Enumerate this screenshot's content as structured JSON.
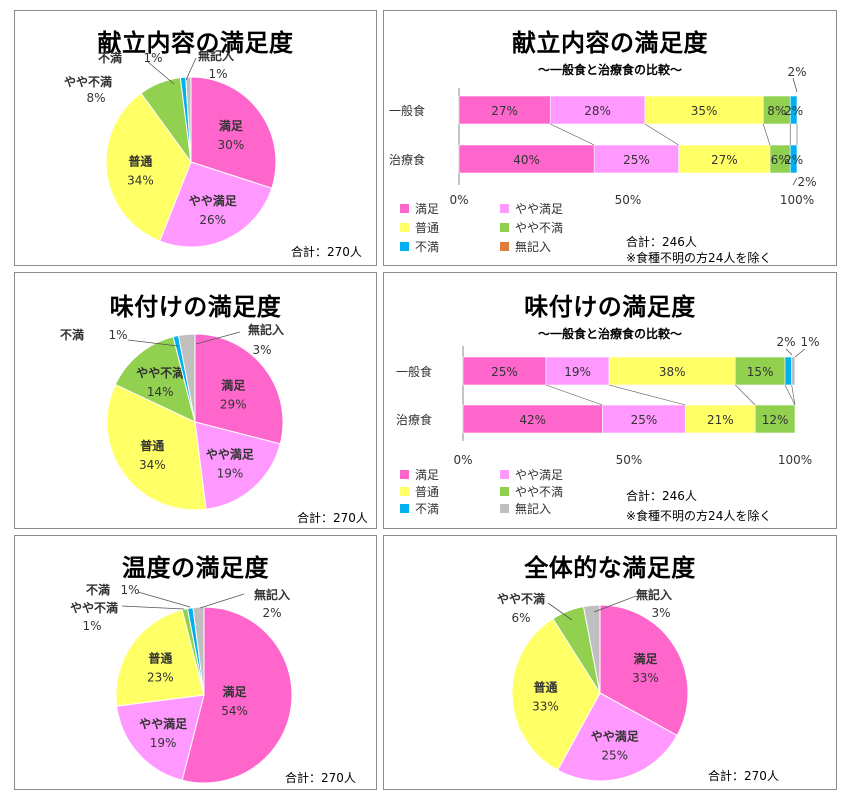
{
  "colors": {
    "satisfied": "#FF66CC",
    "somewhat_satisfied": "#FF99FF",
    "neutral": "#FFFF66",
    "somewhat_dissatisfied": "#92D050",
    "dissatisfied": "#00B0F0",
    "no_answer_orange": "#E07C3C",
    "no_answer_gray": "#BFBFBF"
  },
  "chart_data": [
    {
      "type": "pie",
      "title": "献立内容の満足度",
      "total": "合計：270人",
      "slices": [
        {
          "label": "満足",
          "value": 30,
          "pct": "30%"
        },
        {
          "label": "やや満足",
          "value": 26,
          "pct": "26%"
        },
        {
          "label": "普通",
          "value": 34,
          "pct": "34%"
        },
        {
          "label": "やや不満",
          "value": 8,
          "pct": "8%"
        },
        {
          "label": "不満",
          "value": 1,
          "pct": "1%"
        },
        {
          "label": "無記入",
          "value": 1,
          "pct": "1%"
        }
      ]
    },
    {
      "type": "bar",
      "orientation": "horizontal-stacked-100",
      "title": "献立内容の満足度",
      "subtitle": "～一般食と治療食の比較～",
      "categories": [
        "一般食",
        "治療食"
      ],
      "xticks": [
        "0%",
        "50%",
        "100%"
      ],
      "series": [
        {
          "name": "満足",
          "values": [
            27,
            40
          ],
          "labels": [
            "27%",
            "40%"
          ]
        },
        {
          "name": "やや満足",
          "values": [
            28,
            25
          ],
          "labels": [
            "28%",
            "25%"
          ]
        },
        {
          "name": "普通",
          "values": [
            35,
            27
          ],
          "labels": [
            "35%",
            "27%"
          ]
        },
        {
          "name": "やや不満",
          "values": [
            8,
            6
          ],
          "labels": [
            "8%",
            "6%"
          ]
        },
        {
          "name": "不満",
          "values": [
            2,
            2
          ],
          "labels": [
            "2%",
            "2%"
          ]
        },
        {
          "name": "無記入",
          "values": [
            0,
            0
          ],
          "labels": [
            "",
            ""
          ]
        }
      ],
      "outside_labels": [
        "2%",
        "2%"
      ],
      "total": "合計：246人",
      "note": "※食種不明の方24人を除く"
    },
    {
      "type": "pie",
      "title": "味付けの満足度",
      "total": "合計：270人",
      "slices": [
        {
          "label": "満足",
          "value": 29,
          "pct": "29%"
        },
        {
          "label": "やや満足",
          "value": 19,
          "pct": "19%"
        },
        {
          "label": "普通",
          "value": 34,
          "pct": "34%"
        },
        {
          "label": "やや不満",
          "value": 14,
          "pct": "14%"
        },
        {
          "label": "不満",
          "value": 1,
          "pct": "1%"
        },
        {
          "label": "無記入",
          "value": 3,
          "pct": "3%"
        }
      ]
    },
    {
      "type": "bar",
      "orientation": "horizontal-stacked-100",
      "title": "味付けの満足度",
      "subtitle": "～一般食と治療食の比較～",
      "categories": [
        "一般食",
        "治療食"
      ],
      "xticks": [
        "0%",
        "50%",
        "100%"
      ],
      "series": [
        {
          "name": "満足",
          "values": [
            25,
            42
          ],
          "labels": [
            "25%",
            "42%"
          ]
        },
        {
          "name": "やや満足",
          "values": [
            19,
            25
          ],
          "labels": [
            "19%",
            "25%"
          ]
        },
        {
          "name": "普通",
          "values": [
            38,
            21
          ],
          "labels": [
            "38%",
            "21%"
          ]
        },
        {
          "name": "やや不満",
          "values": [
            15,
            12
          ],
          "labels": [
            "15%",
            "12%"
          ]
        },
        {
          "name": "不満",
          "values": [
            2,
            0
          ],
          "labels": [
            "",
            ""
          ]
        },
        {
          "name": "無記入",
          "values": [
            1,
            0
          ],
          "labels": [
            "",
            ""
          ]
        }
      ],
      "outside_labels": [
        "2%",
        "1%"
      ],
      "total": "合計：246人",
      "note": "※食種不明の方24人を除く"
    },
    {
      "type": "pie",
      "title": "温度の満足度",
      "total": "合計：270人",
      "slices": [
        {
          "label": "満足",
          "value": 54,
          "pct": "54%"
        },
        {
          "label": "やや満足",
          "value": 19,
          "pct": "19%"
        },
        {
          "label": "普通",
          "value": 23,
          "pct": "23%"
        },
        {
          "label": "やや不満",
          "value": 1,
          "pct": "1%"
        },
        {
          "label": "不満",
          "value": 1,
          "pct": "1%"
        },
        {
          "label": "無記入",
          "value": 2,
          "pct": "2%"
        }
      ]
    },
    {
      "type": "pie",
      "title": "全体的な満足度",
      "total": "合計：270人",
      "slices": [
        {
          "label": "満足",
          "value": 33,
          "pct": "33%"
        },
        {
          "label": "やや満足",
          "value": 25,
          "pct": "25%"
        },
        {
          "label": "普通",
          "value": 33,
          "pct": "33%"
        },
        {
          "label": "やや不満",
          "value": 6,
          "pct": "6%"
        },
        {
          "label": "無記入",
          "value": 3,
          "pct": "3%"
        }
      ]
    }
  ]
}
